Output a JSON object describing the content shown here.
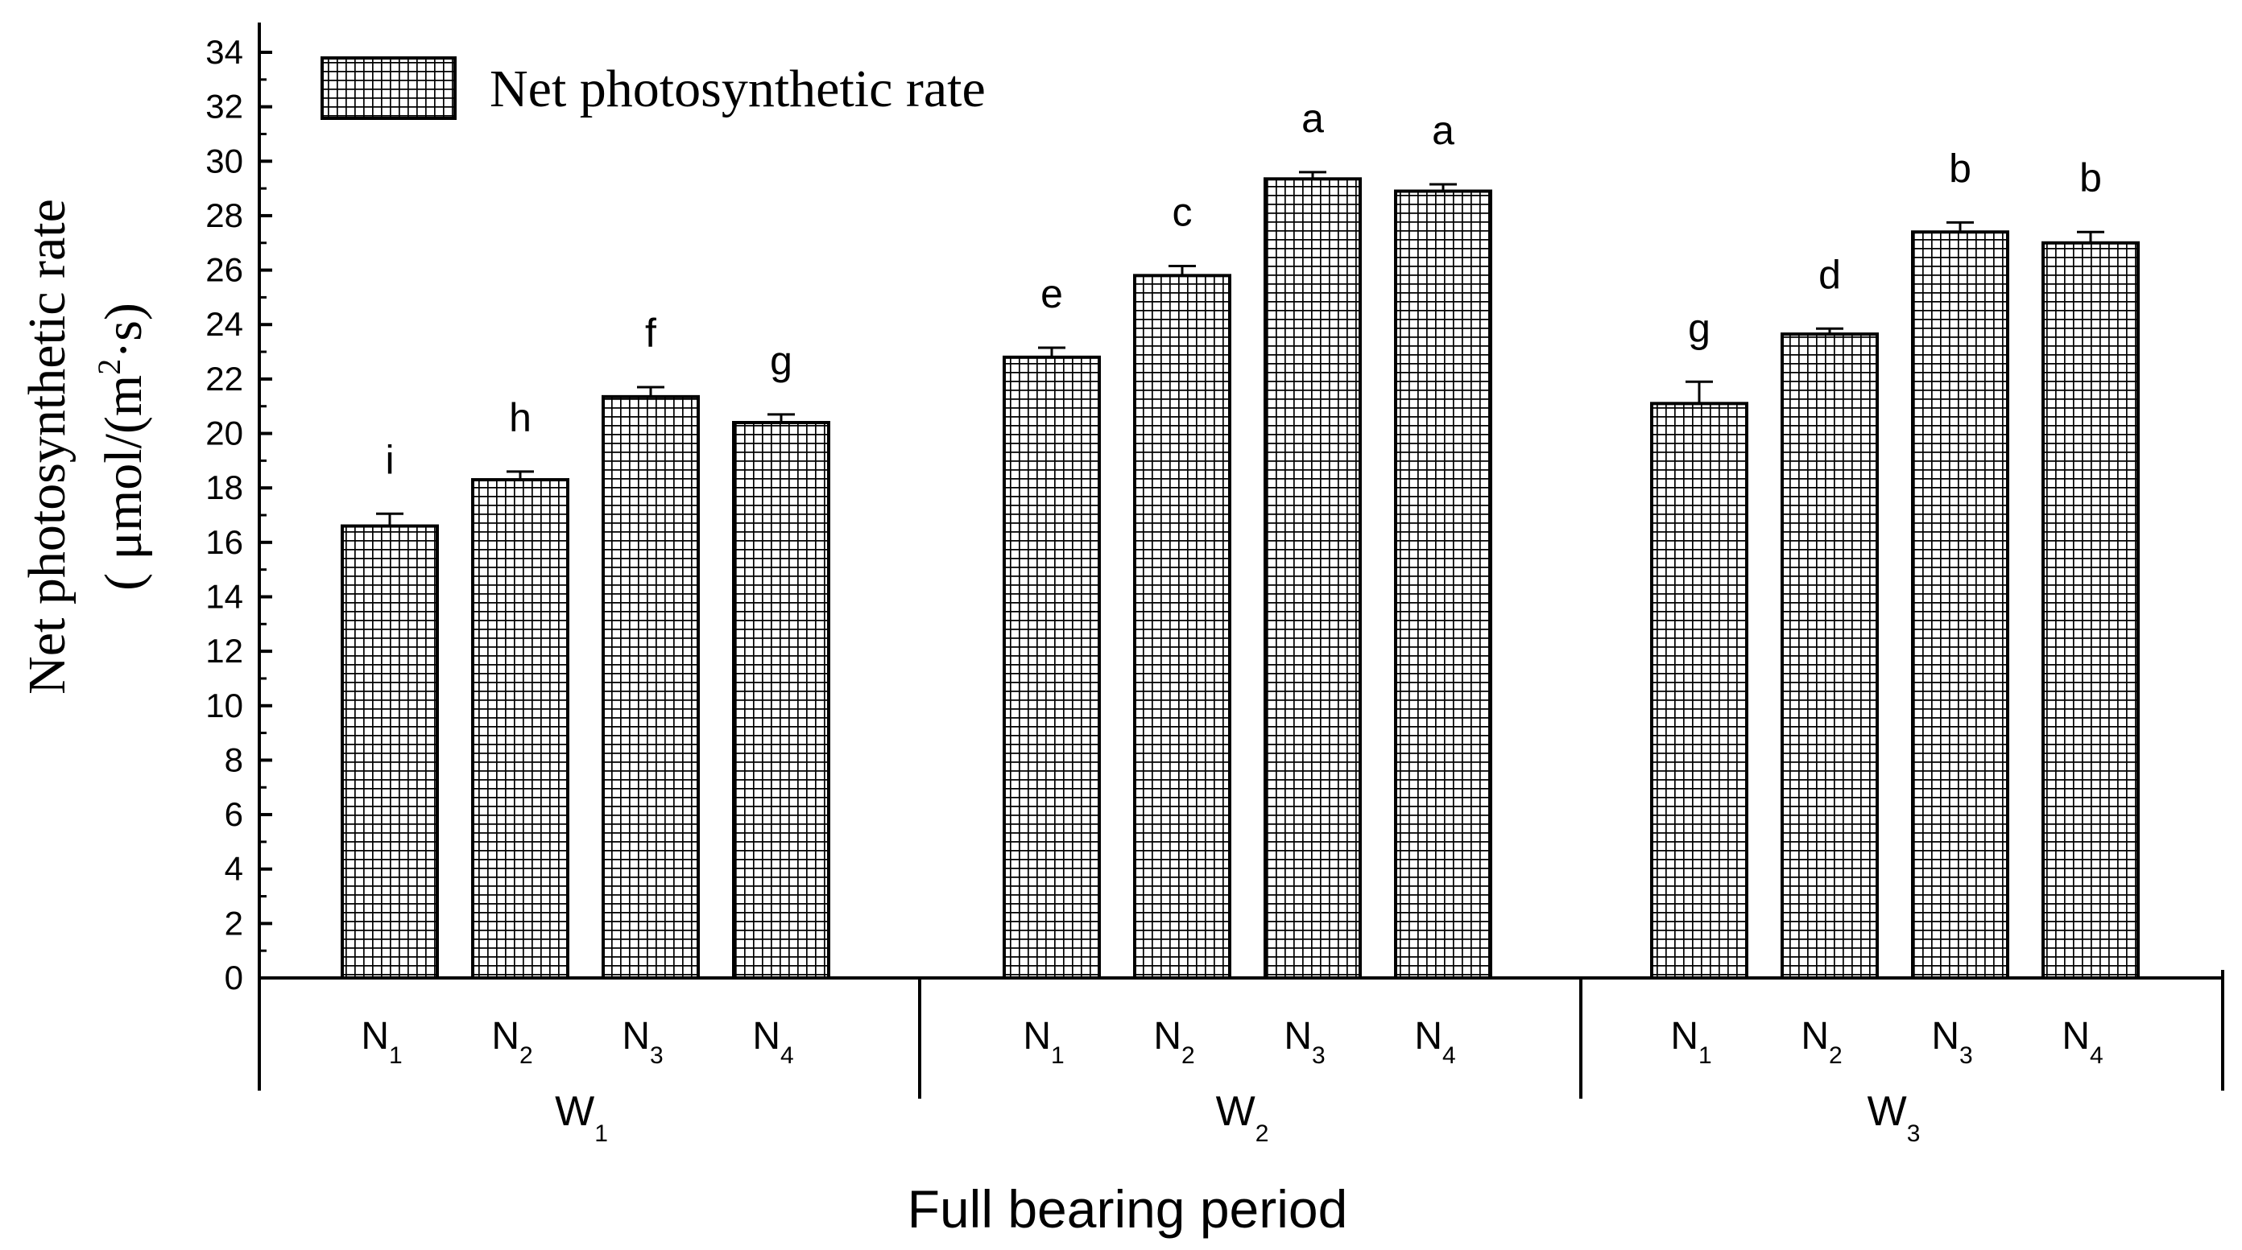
{
  "chart_data": {
    "type": "bar",
    "title": "",
    "xlabel": "Full bearing period",
    "ylabel_line1": "Net photosynthetic rate",
    "ylabel_line2_prefix": "( μmol/(m",
    "ylabel_line2_sup": "2",
    "ylabel_line2_suffix": "·s)",
    "ylim": [
      0,
      34
    ],
    "yticks": [
      0,
      2,
      4,
      6,
      8,
      10,
      12,
      14,
      16,
      18,
      20,
      22,
      24,
      26,
      28,
      30,
      32,
      34
    ],
    "legend": {
      "label": "Net photosynthetic rate",
      "position": "top-left"
    },
    "groups": [
      {
        "name": "W",
        "sub": "1",
        "bars": [
          {
            "name": "N",
            "sub": "1",
            "value": 16.6,
            "error": 0.45,
            "letter": "i"
          },
          {
            "name": "N",
            "sub": "2",
            "value": 18.3,
            "error": 0.3,
            "letter": "h"
          },
          {
            "name": "N",
            "sub": "3",
            "value": 21.35,
            "error": 0.35,
            "letter": "f"
          },
          {
            "name": "N",
            "sub": "4",
            "value": 20.4,
            "error": 0.3,
            "letter": "g"
          }
        ]
      },
      {
        "name": "W",
        "sub": "2",
        "bars": [
          {
            "name": "N",
            "sub": "1",
            "value": 22.8,
            "error": 0.35,
            "letter": "e"
          },
          {
            "name": "N",
            "sub": "2",
            "value": 25.8,
            "error": 0.35,
            "letter": "c"
          },
          {
            "name": "N",
            "sub": "3",
            "value": 29.35,
            "error": 0.25,
            "letter": "a"
          },
          {
            "name": "N",
            "sub": "4",
            "value": 28.9,
            "error": 0.25,
            "letter": "a"
          }
        ]
      },
      {
        "name": "W",
        "sub": "3",
        "bars": [
          {
            "name": "N",
            "sub": "1",
            "value": 21.1,
            "error": 0.8,
            "letter": "g"
          },
          {
            "name": "N",
            "sub": "2",
            "value": 23.65,
            "error": 0.2,
            "letter": "d"
          },
          {
            "name": "N",
            "sub": "3",
            "value": 27.4,
            "error": 0.35,
            "letter": "b"
          },
          {
            "name": "N",
            "sub": "4",
            "value": 27.0,
            "error": 0.4,
            "letter": "b"
          }
        ]
      }
    ]
  }
}
